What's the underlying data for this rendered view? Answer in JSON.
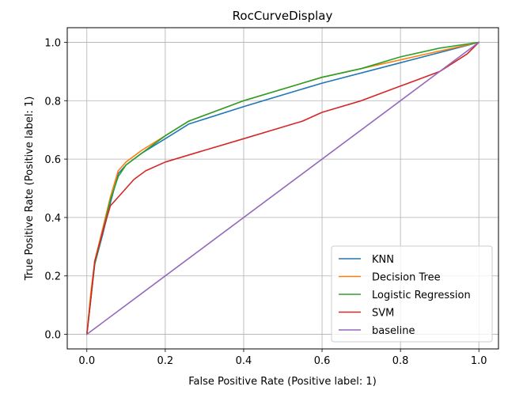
{
  "chart_data": {
    "type": "line",
    "title": "RocCurveDisplay",
    "xlabel": "False Positive Rate (Positive label: 1)",
    "ylabel": "True Positive Rate (Positive label: 1)",
    "xlim": [
      -0.05,
      1.05
    ],
    "ylim": [
      -0.05,
      1.05
    ],
    "xticks": [
      0.0,
      0.2,
      0.4,
      0.6,
      0.8,
      1.0
    ],
    "yticks": [
      0.0,
      0.2,
      0.4,
      0.6,
      0.8,
      1.0
    ],
    "xtick_labels": [
      "0.0",
      "0.2",
      "0.4",
      "0.6",
      "0.8",
      "1.0"
    ],
    "ytick_labels": [
      "0.0",
      "0.2",
      "0.4",
      "0.6",
      "0.8",
      "1.0"
    ],
    "grid": true,
    "legend_position": "lower-right",
    "series": [
      {
        "name": "KNN",
        "color": "#1f77b4",
        "x": [
          0,
          0.01,
          0.02,
          0.04,
          0.06,
          0.08,
          0.1,
          0.14,
          0.2,
          0.26,
          0.4,
          0.6,
          0.8,
          1.0
        ],
        "y": [
          0,
          0.12,
          0.24,
          0.34,
          0.45,
          0.55,
          0.58,
          0.62,
          0.67,
          0.72,
          0.78,
          0.86,
          0.93,
          1.0
        ]
      },
      {
        "name": "Decision Tree",
        "color": "#ff7f0e",
        "x": [
          0,
          0.01,
          0.02,
          0.04,
          0.06,
          0.08,
          0.1,
          0.14,
          0.2,
          0.26,
          0.3,
          0.4,
          0.5,
          0.6,
          0.7,
          0.8,
          0.9,
          1.0
        ],
        "y": [
          0,
          0.14,
          0.25,
          0.36,
          0.47,
          0.56,
          0.59,
          0.63,
          0.68,
          0.73,
          0.75,
          0.8,
          0.84,
          0.88,
          0.91,
          0.94,
          0.97,
          1.0
        ]
      },
      {
        "name": "Logistic Regression",
        "color": "#2ca02c",
        "x": [
          0,
          0.01,
          0.02,
          0.04,
          0.06,
          0.08,
          0.1,
          0.14,
          0.2,
          0.26,
          0.3,
          0.4,
          0.5,
          0.6,
          0.7,
          0.8,
          0.9,
          1.0
        ],
        "y": [
          0,
          0.12,
          0.24,
          0.35,
          0.46,
          0.54,
          0.58,
          0.62,
          0.68,
          0.73,
          0.75,
          0.8,
          0.84,
          0.88,
          0.91,
          0.95,
          0.98,
          1.0
        ]
      },
      {
        "name": "SVM",
        "color": "#d62728",
        "x": [
          0,
          0.01,
          0.02,
          0.04,
          0.06,
          0.08,
          0.1,
          0.12,
          0.15,
          0.2,
          0.3,
          0.4,
          0.5,
          0.55,
          0.6,
          0.7,
          0.8,
          0.9,
          0.97,
          1.0
        ],
        "y": [
          0,
          0.12,
          0.25,
          0.35,
          0.44,
          0.47,
          0.5,
          0.53,
          0.56,
          0.59,
          0.63,
          0.67,
          0.71,
          0.73,
          0.76,
          0.8,
          0.85,
          0.9,
          0.96,
          1.0
        ]
      },
      {
        "name": "baseline",
        "color": "#9467bd",
        "x": [
          0,
          1.0
        ],
        "y": [
          0,
          1.0
        ]
      }
    ]
  }
}
